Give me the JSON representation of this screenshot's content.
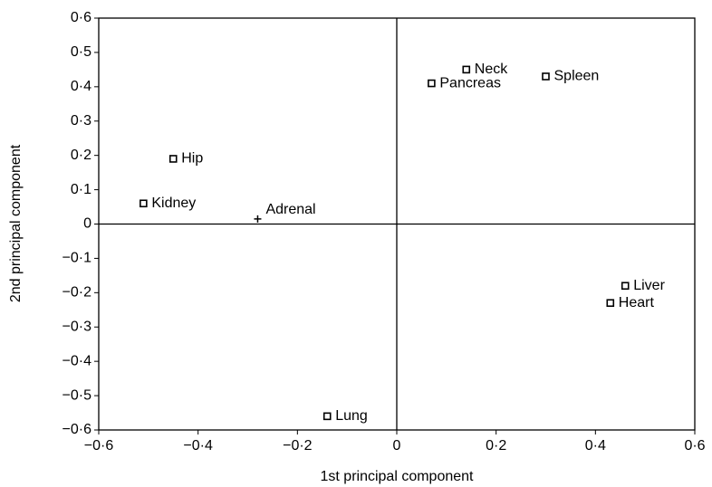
{
  "chart_data": {
    "type": "scatter",
    "x_label": "1st principal component",
    "y_label": "2nd principal component",
    "xlim": [
      -0.6,
      0.6
    ],
    "ylim": [
      -0.6,
      0.6
    ],
    "xticks": [
      {
        "value": -0.6,
        "label": "−0·6"
      },
      {
        "value": -0.4,
        "label": "−0·4"
      },
      {
        "value": -0.2,
        "label": "−0·2"
      },
      0,
      {
        "value": 0.2,
        "label": "0·2"
      },
      {
        "value": 0.4,
        "label": "0·4"
      },
      {
        "value": 0.6,
        "label": "0·6"
      }
    ],
    "yticks": [
      {
        "value": 0.6,
        "label": "0·6"
      },
      {
        "value": 0.5,
        "label": "0·5"
      },
      {
        "value": 0.4,
        "label": "0·4"
      },
      {
        "value": 0.3,
        "label": "0·3"
      },
      {
        "value": 0.2,
        "label": "0·2"
      },
      {
        "value": 0.1,
        "label": "0·1"
      },
      0,
      {
        "value": -0.1,
        "label": "−0·1"
      },
      {
        "value": -0.2,
        "label": "−0·2"
      },
      {
        "value": -0.3,
        "label": "−0·3"
      },
      {
        "value": -0.4,
        "label": "−0·4"
      },
      {
        "value": -0.5,
        "label": "−0·5"
      },
      {
        "value": -0.6,
        "label": "−0·6"
      }
    ],
    "points": [
      {
        "label": "Neck",
        "x": 0.14,
        "y": 0.45,
        "marker": "square"
      },
      {
        "label": "Pancreas",
        "x": 0.07,
        "y": 0.41,
        "marker": "square"
      },
      {
        "label": "Spleen",
        "x": 0.3,
        "y": 0.43,
        "marker": "square"
      },
      {
        "label": "Hip",
        "x": -0.45,
        "y": 0.19,
        "marker": "square"
      },
      {
        "label": "Kidney",
        "x": -0.51,
        "y": 0.06,
        "marker": "square"
      },
      {
        "label": "Adrenal",
        "x": -0.28,
        "y": 0.015,
        "marker": "plus"
      },
      {
        "label": "Liver",
        "x": 0.46,
        "y": -0.18,
        "marker": "square"
      },
      {
        "label": "Heart",
        "x": 0.43,
        "y": -0.23,
        "marker": "square"
      },
      {
        "label": "Lung",
        "x": -0.14,
        "y": -0.56,
        "marker": "square"
      }
    ],
    "color": "#000000"
  }
}
